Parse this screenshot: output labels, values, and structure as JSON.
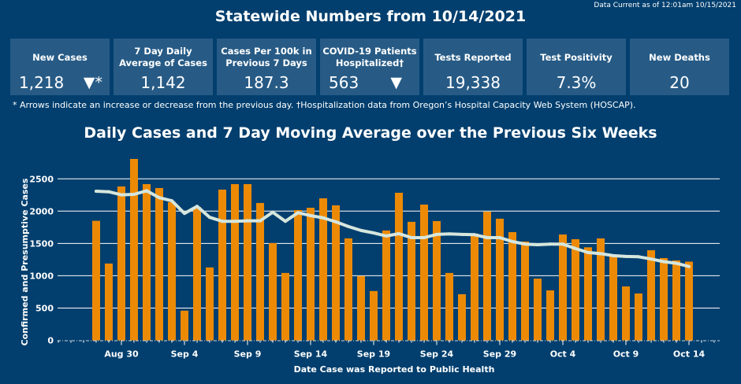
{
  "header": {
    "title": "Statewide Numbers from 10/14/2021",
    "data_current": "Data Current as of 12:01am 10/15/2021"
  },
  "cards": [
    {
      "label": "New Cases",
      "value": "1,218",
      "arrow": "▼*"
    },
    {
      "label": "7 Day Daily Average of Cases",
      "value": "1,142",
      "arrow": ""
    },
    {
      "label": "Cases Per 100k in Previous 7 Days",
      "value": "187.3",
      "arrow": ""
    },
    {
      "label": "COVID-19 Patients Hospitalized†",
      "value": "563",
      "arrow": "▼"
    },
    {
      "label": "Tests Reported",
      "value": "19,338",
      "arrow": ""
    },
    {
      "label": "Test Positivity",
      "value": "7.3%",
      "arrow": ""
    },
    {
      "label": "New Deaths",
      "value": "20",
      "arrow": ""
    }
  ],
  "footnote": "* Arrows indicate an increase or decrease from the previous day. †Hospitalization data from Oregon’s Hospital Capacity Web System (HOSCAP).",
  "colors": {
    "background": "#023f6e",
    "card": "#275b86",
    "bar": "#ec8a06",
    "line": "#d6e6dd",
    "grid": "#ffffff"
  },
  "chart_data": {
    "type": "bar",
    "title": "Daily Cases and 7 Day Moving Average over the Previous Six Weeks",
    "xlabel": "Date Case was Reported to Public Health",
    "ylabel": "Confirmed and Presumptive Cases",
    "ylim": [
      0,
      2750
    ],
    "yticks": [
      0,
      500,
      1000,
      1500,
      2000,
      2500
    ],
    "grid": true,
    "xtick_labels": [
      "Aug 30",
      "Sep 4",
      "Sep 9",
      "Sep 14",
      "Sep 19",
      "Sep 24",
      "Sep 29",
      "Oct 4",
      "Oct 9",
      "Oct 14"
    ],
    "xtick_day_index": [
      2,
      7,
      12,
      17,
      22,
      27,
      32,
      37,
      42,
      47
    ],
    "start_date": "Aug 28",
    "categories": [
      "Aug 28",
      "Aug 29",
      "Aug 30",
      "Aug 31",
      "Sep 1",
      "Sep 2",
      "Sep 3",
      "Sep 4",
      "Sep 5",
      "Sep 6",
      "Sep 7",
      "Sep 8",
      "Sep 9",
      "Sep 10",
      "Sep 11",
      "Sep 12",
      "Sep 13",
      "Sep 14",
      "Sep 15",
      "Sep 16",
      "Sep 17",
      "Sep 18",
      "Sep 19",
      "Sep 20",
      "Sep 21",
      "Sep 22",
      "Sep 23",
      "Sep 24",
      "Sep 25",
      "Sep 26",
      "Sep 27",
      "Sep 28",
      "Sep 29",
      "Sep 30",
      "Oct 1",
      "Oct 2",
      "Oct 3",
      "Oct 4",
      "Oct 5",
      "Oct 6",
      "Oct 7",
      "Oct 8",
      "Oct 9",
      "Oct 10",
      "Oct 11",
      "Oct 12",
      "Oct 13",
      "Oct 14"
    ],
    "series": [
      {
        "name": "Daily Cases",
        "type": "bar",
        "values": [
          1850,
          1189,
          2382,
          2808,
          2418,
          2357,
          2138,
          459,
          2065,
          1128,
          2333,
          2418,
          2418,
          2126,
          1505,
          1043,
          2016,
          2052,
          2198,
          2089,
          1578,
          995,
          763,
          1700,
          2284,
          1834,
          2101,
          1846,
          1043,
          714,
          1651,
          1992,
          1883,
          1675,
          1529,
          955,
          773,
          1638,
          1565,
          1440,
          1578,
          1310,
          834,
          725,
          1395,
          1273,
          1237,
          1218
        ]
      },
      {
        "name": "7 Day Moving Average",
        "type": "line",
        "values": [
          2308,
          2300,
          2252,
          2260,
          2316,
          2208,
          2160,
          1965,
          2074,
          1904,
          1843,
          1843,
          1850,
          1850,
          1983,
          1843,
          1976,
          1930,
          1895,
          1834,
          1761,
          1700,
          1663,
          1615,
          1651,
          1590,
          1590,
          1639,
          1647,
          1639,
          1635,
          1590,
          1590,
          1529,
          1490,
          1480,
          1490,
          1490,
          1420,
          1359,
          1341,
          1310,
          1298,
          1294,
          1258,
          1218,
          1192,
          1142
        ]
      }
    ]
  }
}
